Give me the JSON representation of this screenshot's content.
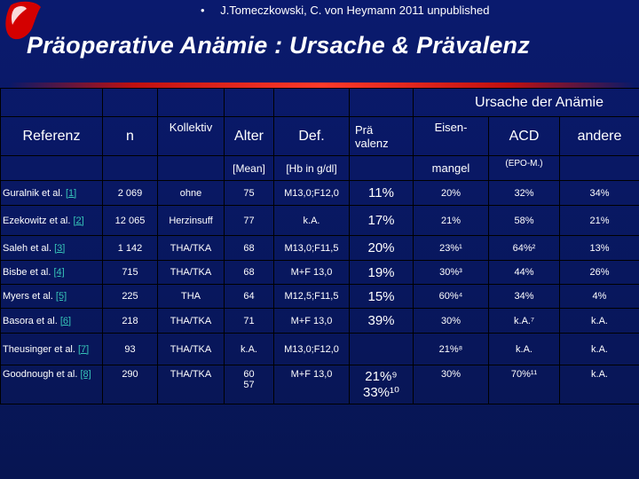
{
  "header": {
    "bullet": "•",
    "citation": "J.Tomeczkowski, C. von Heymann 2011 unpublished",
    "title": "Präoperative Anämie : Ursache & Prävalenz"
  },
  "table": {
    "cause_header": "Ursache der Anämie",
    "columns": {
      "referenz": "Referenz",
      "n": "n",
      "kollektiv": "Kollektiv",
      "alter": "Alter",
      "def": "Def.",
      "pra": "Prä",
      "valenz": "valenz",
      "eisen": "Eisen-",
      "acd": "ACD",
      "andere": "andere"
    },
    "subheaders": {
      "mean": "[Mean]",
      "hb": "[Hb in g/dl]",
      "mangel": "mangel",
      "epo": "(EPO-M.)"
    },
    "rows": [
      {
        "ref": "Guralnik et al.",
        "link": "[1]",
        "n": "2 069",
        "kollektiv": "ohne",
        "alter": "75",
        "def": "M13,0;F12,0",
        "prev": "11%",
        "eisen": "20%",
        "acd": "32%",
        "andere": "34%"
      },
      {
        "ref": "Ezekowitz et al.",
        "link": "[2]",
        "n": "12 065",
        "kollektiv": "Herzinsuff",
        "alter": "77",
        "def": "k.A.",
        "prev": "17%",
        "eisen": "21%",
        "acd": "58%",
        "andere": "21%"
      },
      {
        "ref": "Saleh et al.",
        "link": "[3]",
        "n": "1 142",
        "kollektiv": "THA/TKA",
        "alter": "68",
        "def": "M13,0;F11,5",
        "prev": "20%",
        "eisen": "23%¹",
        "acd": "64%²",
        "andere": "13%"
      },
      {
        "ref": "Bisbe et al.",
        "link": "[4]",
        "n": "715",
        "kollektiv": "THA/TKA",
        "alter": "68",
        "def": "M+F 13,0",
        "prev": "19%",
        "eisen": "30%³",
        "acd": "44%",
        "andere": "26%"
      },
      {
        "ref": "Myers et al.",
        "link": "[5]",
        "n": "225",
        "kollektiv": "THA",
        "alter": "64",
        "def": "M12,5;F11,5",
        "prev": "15%",
        "eisen": "60%⁴",
        "acd": "34%",
        "andere": "4%"
      },
      {
        "ref": "Basora et al.",
        "link": "[6]",
        "n": "218",
        "kollektiv": "THA/TKA",
        "alter": "71",
        "def": "M+F 13,0",
        "prev": "39%",
        "eisen": "30%",
        "acd": "k.A.⁷",
        "andere": "k.A."
      },
      {
        "ref": "Theusinger et al.",
        "link": "[7]",
        "n": "93",
        "kollektiv": "THA/TKA",
        "alter": "k.A.",
        "def": "M13,0;F12,0",
        "prev": "",
        "eisen": "21%⁸",
        "acd": "k.A.",
        "andere": "k.A."
      },
      {
        "ref": "Goodnough et al.",
        "link": "[8]",
        "n": "290",
        "kollektiv": "THA/TKA",
        "alter": "60",
        "alter2": "57",
        "def": "M+F 13,0",
        "prev": "21%⁹",
        "prev2": "33%¹⁰",
        "eisen": "30%",
        "acd": "70%¹¹",
        "andere": "k.A."
      }
    ]
  }
}
